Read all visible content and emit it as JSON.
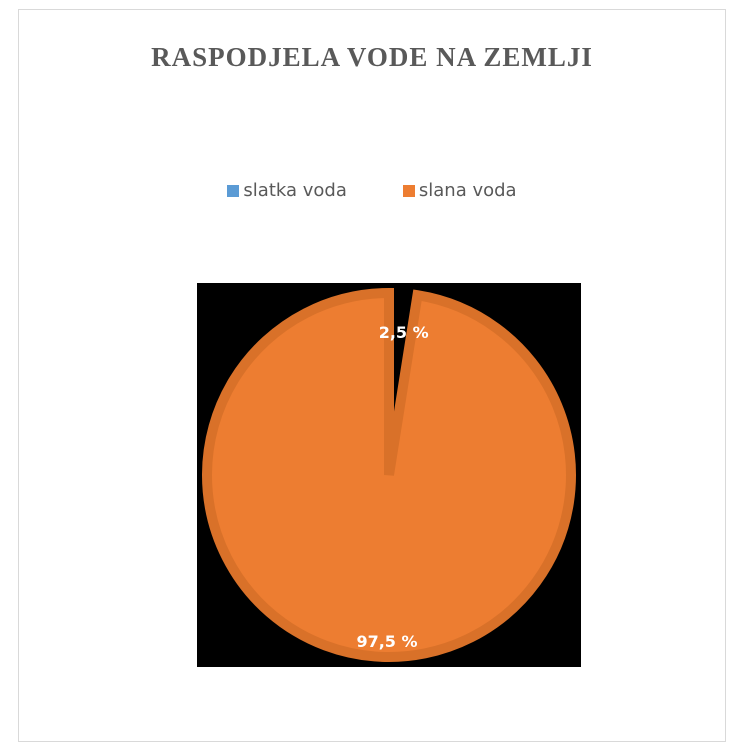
{
  "chart_data": {
    "type": "pie",
    "title": "RASPODJELA VODE NA ZEMLJI",
    "categories": [
      "slatka voda",
      "slana voda"
    ],
    "values": [
      2.5,
      97.5
    ],
    "data_labels": [
      "2,5 %",
      "97,5 %"
    ],
    "colors": [
      "#5b9bd5",
      "#ed7d31"
    ],
    "legend_position": "top",
    "plot_background": "#000000",
    "slice_border_color": "#d97129"
  }
}
